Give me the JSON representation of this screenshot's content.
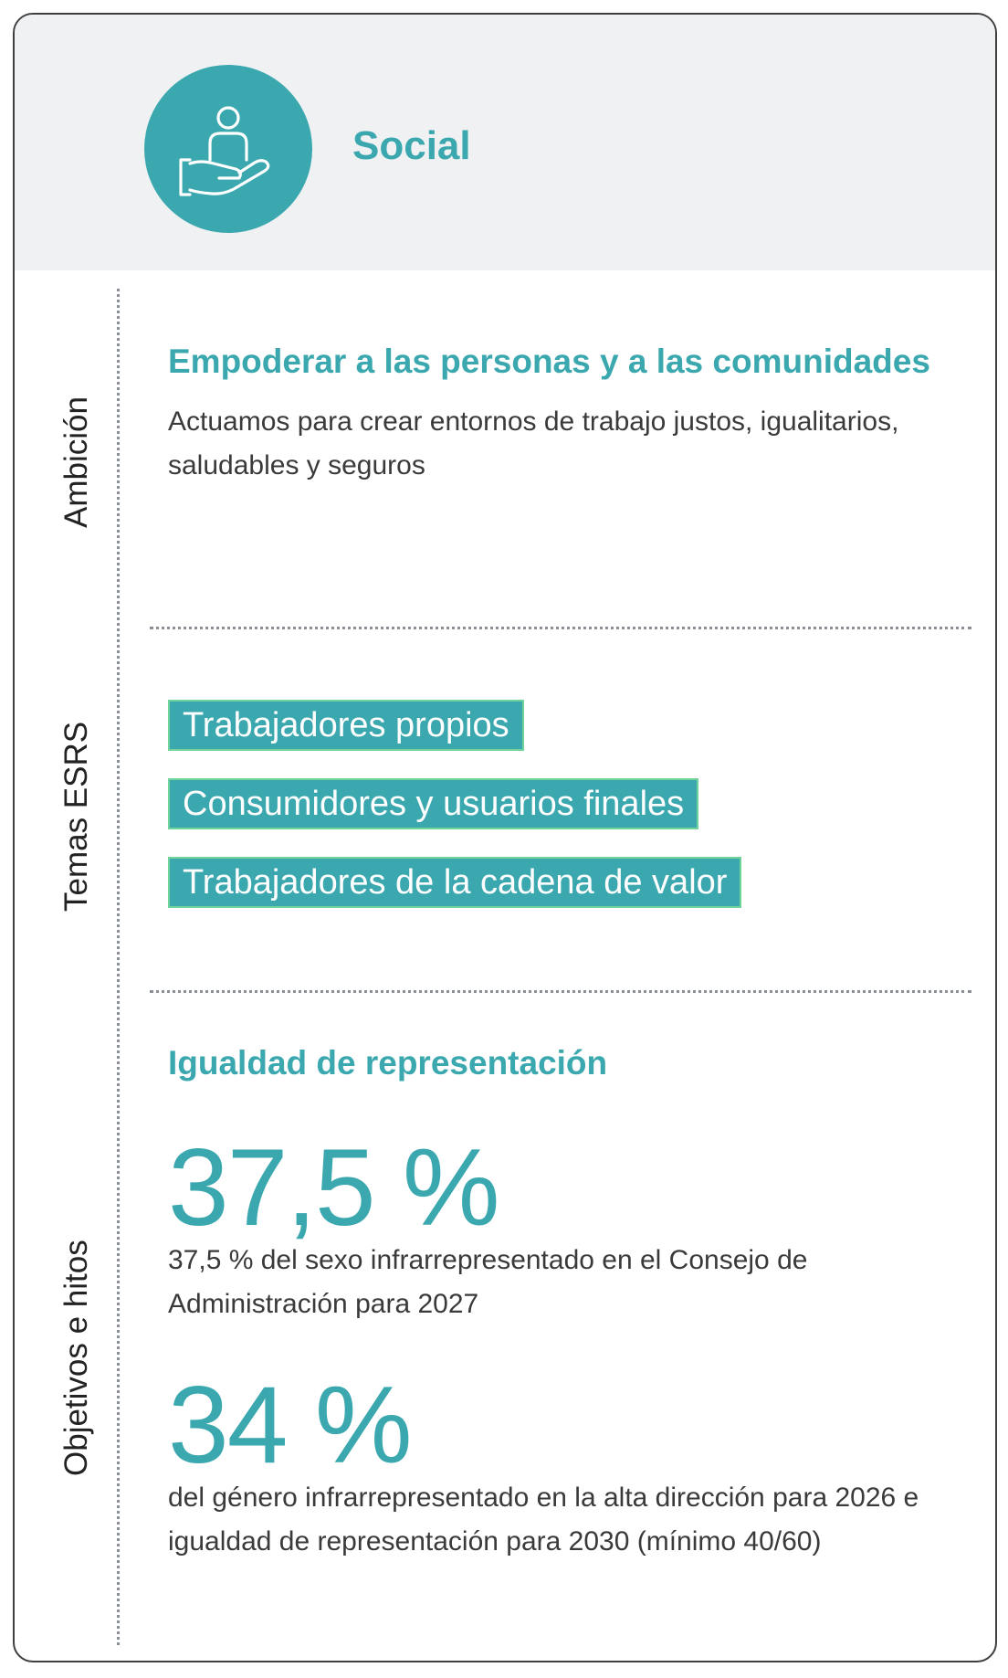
{
  "header": {
    "icon": "person-on-hand-icon",
    "title": "Social",
    "accent_color": "#3aa8ae"
  },
  "sections": {
    "ambition": {
      "label": "Ambición",
      "title": "Empoderar a las personas y a las comunidades",
      "text": "Actuamos para crear entornos de trabajo justos, igualitarios, saludables y seguros"
    },
    "topics": {
      "label": "Temas ESRS",
      "tags": [
        "Trabajadores propios",
        "Consumidores y usuarios finales",
        "Trabajadores de la cadena de valor"
      ]
    },
    "goals": {
      "label": "Objetivos e hitos",
      "title": "Igualdad de representación",
      "metrics": [
        {
          "value": "37,5 %",
          "text": "37,5 % del sexo infrarrepresentado en el Consejo de Administración para 2027"
        },
        {
          "value": "34 %",
          "text": "del género infrarrepresentado en la alta dirección para 2026 e igualdad de representación para 2030 (mínimo 40/60)"
        }
      ]
    }
  }
}
